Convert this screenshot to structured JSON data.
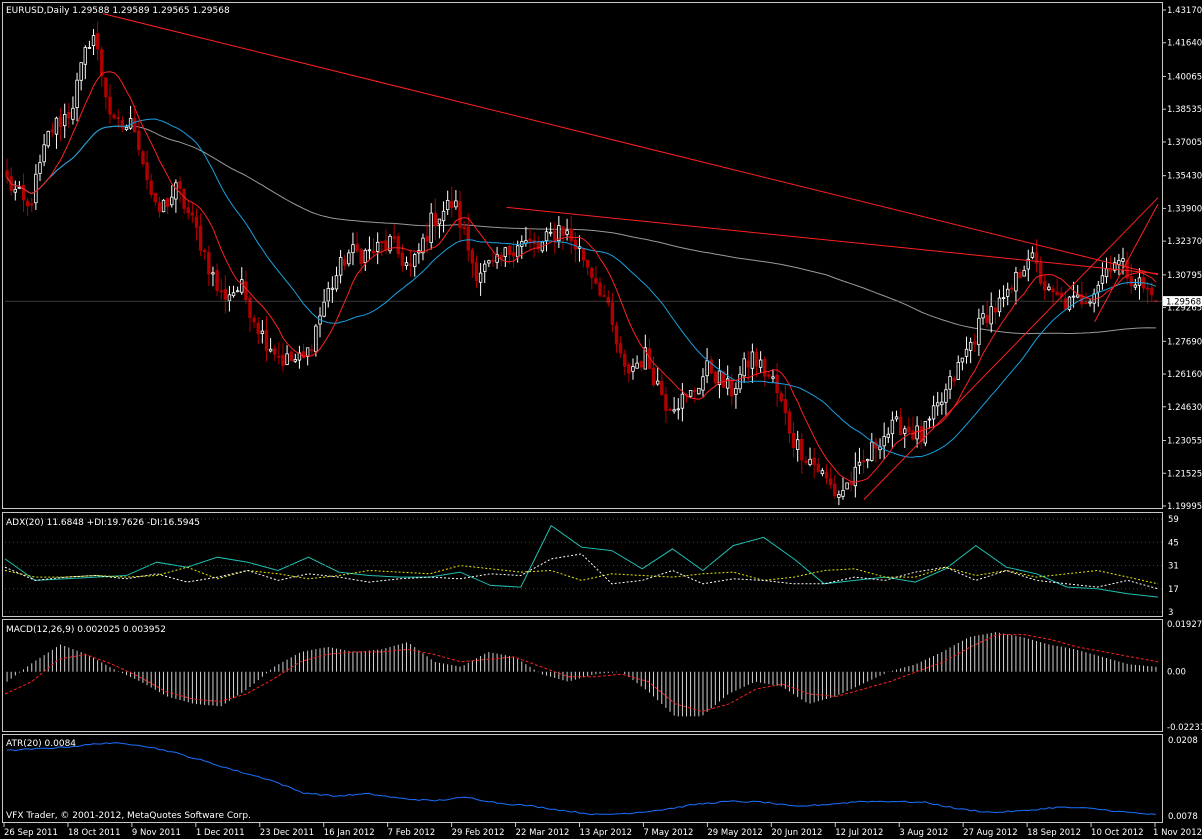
{
  "colors": {
    "background": "#000000",
    "frame": "#c8c8c8",
    "bull_candle": "#ffffff",
    "bear_candle": "#b00000",
    "ma_fast": "#ff2020",
    "ma_mid": "#1aa0e0",
    "ma_slow": "#9a9a9a",
    "trendline": "#ff2020",
    "adx_line": "#20c0b0",
    "plus_di": "#e8e800",
    "minus_di": "#ffffff",
    "macd_hist": "#e8e8e8",
    "macd_signal": "#ff2020",
    "atr_line": "#1a70ff",
    "price_marker_bg": "#ffffff",
    "price_marker_text": "#000000"
  },
  "price_pane": {
    "header": "EURUSD,Daily  1.29588 1.29589 1.29565 1.29568",
    "current_price_label": "1.29568",
    "axis_labels": [
      "1.43170",
      "1.41640",
      "1.40065",
      "1.38535",
      "1.37005",
      "1.35430",
      "1.33900",
      "1.32370",
      "1.30795",
      "1.29265",
      "1.27690",
      "1.26160",
      "1.24630",
      "1.23055",
      "1.21525",
      "1.19995"
    ]
  },
  "adx_pane": {
    "header": "ADX(20) 11.6848 +DI:19.7626 -DI:16.5945",
    "axis_labels": [
      "59",
      "45",
      "31",
      "17",
      "3"
    ]
  },
  "macd_pane": {
    "header": "MACD(12,26,9) 0.002025 0.003952",
    "axis_labels": [
      "0.01927",
      "0.00",
      "-0.02231"
    ]
  },
  "atr_pane": {
    "header": "ATR(20) 0.0084",
    "axis_labels": [
      "0.0208",
      "0.0078"
    ],
    "copyright": "VFX Trader,  © 2001-2012, MetaQuotes Software Corp."
  },
  "time_axis": {
    "labels": [
      "26 Sep 2011",
      "18 Oct 2011",
      "9 Nov 2011",
      "1 Dec 2011",
      "23 Dec 2011",
      "16 Jan 2012",
      "7 Feb 2012",
      "29 Feb 2012",
      "22 Mar 2012",
      "13 Apr 2012",
      "7 May 2012",
      "29 May 2012",
      "20 Jun 2012",
      "12 Jul 2012",
      "3 Aug 2012",
      "27 Aug 2012",
      "18 Sep 2012",
      "10 Oct 2012",
      "1 Nov 2012"
    ]
  },
  "chart_data": [
    {
      "type": "candlestick",
      "title": "EURUSD,Daily",
      "symbol": "EURUSD",
      "timeframe": "Daily",
      "last_ohlc": {
        "open": 1.29588,
        "high": 1.29589,
        "low": 1.29565,
        "close": 1.29568
      },
      "ylim": [
        1.19995,
        1.4317
      ],
      "x_dates": [
        "26 Sep 2011",
        "18 Oct 2011",
        "9 Nov 2011",
        "1 Dec 2011",
        "23 Dec 2011",
        "16 Jan 2012",
        "7 Feb 2012",
        "29 Feb 2012",
        "22 Mar 2012",
        "13 Apr 2012",
        "7 May 2012",
        "29 May 2012",
        "20 Jun 2012",
        "12 Jul 2012",
        "3 Aug 2012",
        "27 Aug 2012",
        "18 Sep 2012",
        "10 Oct 2012",
        "1 Nov 2012"
      ],
      "close_anchors": [
        1.352,
        1.338,
        1.375,
        1.385,
        1.423,
        1.377,
        1.378,
        1.336,
        1.348,
        1.326,
        1.298,
        1.302,
        1.28,
        1.268,
        1.268,
        1.298,
        1.318,
        1.318,
        1.323,
        1.31,
        1.334,
        1.342,
        1.31,
        1.312,
        1.324,
        1.32,
        1.331,
        1.318,
        1.3,
        1.262,
        1.27,
        1.248,
        1.25,
        1.265,
        1.253,
        1.27,
        1.258,
        1.23,
        1.219,
        1.205,
        1.215,
        1.232,
        1.238,
        1.232,
        1.25,
        1.27,
        1.29,
        1.296,
        1.318,
        1.298,
        1.294,
        1.3,
        1.316,
        1.306,
        1.296
      ],
      "grid": false
    },
    {
      "type": "line",
      "title": "ADX(20) 11.6848 +DI:19.7626 -DI:16.5945",
      "ylim": [
        3,
        59
      ],
      "series": [
        {
          "name": "ADX",
          "values": [
            35,
            22,
            23,
            24,
            25,
            33,
            30,
            36,
            33,
            28,
            36,
            27,
            25,
            24,
            24,
            27,
            19,
            18,
            55,
            42,
            40,
            29,
            41,
            28,
            43,
            48,
            35,
            20,
            22,
            24,
            21,
            29,
            43,
            30,
            26,
            18,
            17,
            14,
            12
          ]
        },
        {
          "name": "+DI",
          "values": [
            28,
            24,
            24,
            25,
            24,
            25,
            30,
            23,
            28,
            26,
            23,
            25,
            28,
            27,
            26,
            31,
            29,
            27,
            28,
            22,
            26,
            25,
            24,
            26,
            27,
            22,
            24,
            28,
            29,
            24,
            24,
            30,
            25,
            28,
            24,
            26,
            28,
            24,
            20
          ]
        },
        {
          "name": "-DI",
          "values": [
            30,
            22,
            24,
            25,
            23,
            26,
            21,
            24,
            28,
            22,
            26,
            24,
            21,
            23,
            24,
            23,
            26,
            25,
            35,
            38,
            20,
            22,
            28,
            20,
            23,
            22,
            20,
            20,
            24,
            22,
            27,
            30,
            22,
            28,
            22,
            20,
            18,
            22,
            17
          ]
        }
      ]
    },
    {
      "type": "bar",
      "title": "MACD(12,26,9) 0.002025 0.003952",
      "ylim": [
        -0.02231,
        0.01927
      ],
      "series": [
        {
          "name": "MACD",
          "values": [
            -0.004,
            0.004,
            0.011,
            0.007,
            0.001,
            -0.004,
            -0.01,
            -0.013,
            -0.014,
            -0.007,
            0.002,
            0.008,
            0.01,
            0.008,
            0.009,
            0.012,
            0.004,
            0.002,
            0.008,
            0.006,
            -0.001,
            -0.004,
            -0.001,
            0.0,
            -0.008,
            -0.018,
            -0.018,
            -0.009,
            -0.004,
            -0.006,
            -0.013,
            -0.01,
            -0.005,
            0.0,
            0.003,
            0.008,
            0.014,
            0.016,
            0.014,
            0.011,
            0.009,
            0.006,
            0.003,
            0.002
          ]
        },
        {
          "name": "Signal",
          "values": [
            -0.009,
            -0.004,
            0.005,
            0.007,
            0.003,
            -0.002,
            -0.008,
            -0.011,
            -0.012,
            -0.009,
            -0.003,
            0.004,
            0.007,
            0.008,
            0.008,
            0.009,
            0.007,
            0.004,
            0.005,
            0.006,
            0.002,
            -0.002,
            -0.002,
            -0.001,
            -0.004,
            -0.013,
            -0.016,
            -0.013,
            -0.007,
            -0.005,
            -0.009,
            -0.01,
            -0.007,
            -0.004,
            0.0,
            0.004,
            0.01,
            0.015,
            0.015,
            0.013,
            0.01,
            0.008,
            0.006,
            0.004
          ]
        }
      ]
    },
    {
      "type": "line",
      "title": "ATR(20) 0.0084",
      "ylim": [
        0.0078,
        0.0208
      ],
      "series": [
        {
          "name": "ATR",
          "values": [
            0.019,
            0.0193,
            0.0197,
            0.0203,
            0.02,
            0.0188,
            0.0172,
            0.0155,
            0.014,
            0.0118,
            0.0112,
            0.0116,
            0.0108,
            0.0104,
            0.011,
            0.01,
            0.0095,
            0.0087,
            0.008,
            0.0083,
            0.0089,
            0.0098,
            0.0103,
            0.0102,
            0.0094,
            0.0098,
            0.0103,
            0.0103,
            0.0101,
            0.009,
            0.0084,
            0.0087,
            0.0093,
            0.0091,
            0.0085,
            0.008
          ]
        }
      ]
    }
  ]
}
